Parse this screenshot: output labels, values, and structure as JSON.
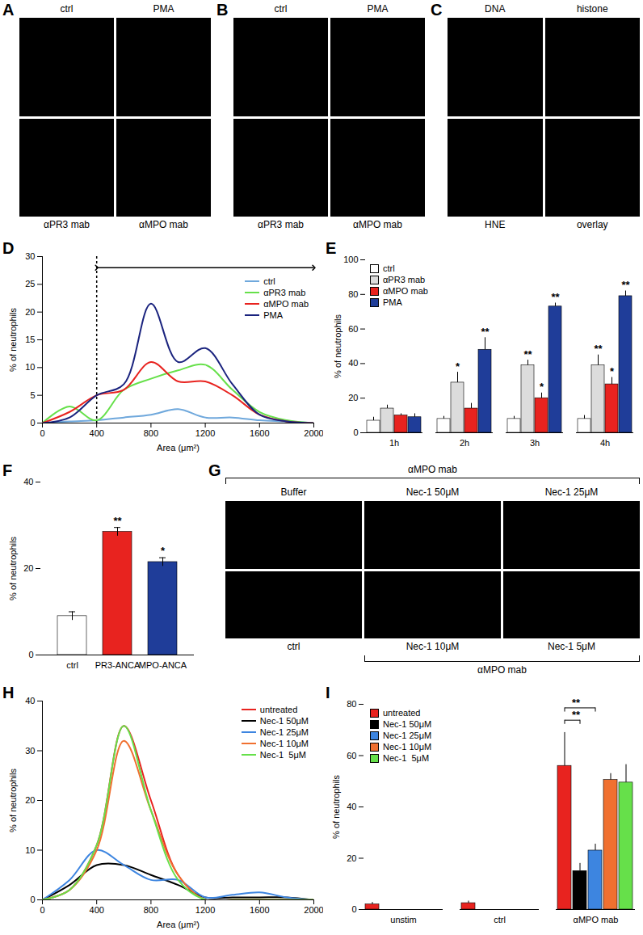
{
  "chart_data": [
    {
      "panel": "A",
      "type": "image",
      "top_labels": [
        "ctrl",
        "PMA"
      ],
      "bottom_labels": [
        "αPR3 mab",
        "αMPO mab"
      ]
    },
    {
      "panel": "B",
      "type": "image",
      "top_labels": [
        "ctrl",
        "PMA"
      ],
      "bottom_labels": [
        "αPR3 mab",
        "αMPO mab"
      ]
    },
    {
      "panel": "C",
      "type": "image",
      "top_labels": [
        "DNA",
        "histone"
      ],
      "bottom_labels": [
        "HNE",
        "overlay"
      ]
    },
    {
      "panel": "D",
      "type": "line",
      "x_label": "Area (μm²)",
      "y_label": "% of neutrophils",
      "x": [
        0,
        200,
        400,
        600,
        800,
        1000,
        1200,
        1400,
        1600,
        1800,
        2000
      ],
      "xlim": [
        0,
        2000
      ],
      "xticks": [
        0,
        400,
        800,
        1200,
        1600,
        2000
      ],
      "ylim": [
        0,
        30
      ],
      "yticks": [
        0,
        5,
        10,
        15,
        20,
        25,
        30
      ],
      "legend": "top-right",
      "threshold": 400,
      "arrow": [
        400,
        2000
      ],
      "arrow_y": 28,
      "series": [
        {
          "name": "ctrl",
          "color": "#6fa8dc",
          "values": [
            0,
            0.3,
            0.5,
            1,
            1.5,
            2.5,
            1,
            1,
            0.5,
            0.3,
            0
          ]
        },
        {
          "name": "αPR3 mab",
          "color": "#66e04a",
          "values": [
            0,
            3,
            0.5,
            6,
            8,
            9.5,
            10.5,
            6,
            2,
            0.5,
            0
          ]
        },
        {
          "name": "αMPO mab",
          "color": "#e8231f",
          "values": [
            0,
            2,
            5,
            6,
            11,
            7.5,
            7.5,
            5,
            1.5,
            0.3,
            0
          ]
        },
        {
          "name": "PMA",
          "color": "#1a237e",
          "values": [
            0,
            1,
            5,
            7,
            21.5,
            11,
            13.5,
            7,
            1.5,
            0.3,
            0
          ]
        }
      ]
    },
    {
      "panel": "E",
      "type": "bar",
      "categories": [
        "1h",
        "2h",
        "3h",
        "4h"
      ],
      "y_label": "% of neutrophils",
      "ylim": [
        0,
        100
      ],
      "yticks": [
        0,
        20,
        40,
        60,
        80,
        100
      ],
      "legend": "top-left",
      "series": [
        {
          "name": "ctrl",
          "color": "#ffffff",
          "values": [
            7,
            8,
            8,
            8
          ],
          "errors": [
            2,
            1.5,
            1.5,
            2
          ]
        },
        {
          "name": "αPR3 mab",
          "color": "#dcdcdc",
          "values": [
            14,
            29,
            39,
            39
          ],
          "errors": [
            2,
            6,
            3,
            6
          ],
          "significance": [
            null,
            "*",
            "**",
            "**"
          ]
        },
        {
          "name": "αMPO mab",
          "color": "#e8231f",
          "values": [
            10,
            14,
            20,
            28
          ],
          "errors": [
            1,
            3,
            3,
            4
          ],
          "significance": [
            null,
            null,
            "*",
            "*"
          ]
        },
        {
          "name": "PMA",
          "color": "#1f3d99",
          "values": [
            9,
            48,
            73,
            79
          ],
          "errors": [
            2,
            7,
            2,
            3
          ],
          "significance": [
            null,
            "**",
            "**",
            "**"
          ]
        }
      ]
    },
    {
      "panel": "F",
      "type": "bar",
      "categories": [
        "ctrl",
        "PR3-ANCA",
        "MPO-ANCA"
      ],
      "values": [
        9,
        28.5,
        21.5
      ],
      "errors": [
        1,
        1,
        1
      ],
      "colors": [
        "#ffffff",
        "#e8231f",
        "#1f3d99"
      ],
      "significance": [
        null,
        "**",
        "*"
      ],
      "y_label": "% of neutrophils",
      "ylim": [
        0,
        40
      ],
      "yticks": [
        0,
        20,
        40
      ]
    },
    {
      "panel": "G",
      "type": "image",
      "group_label_top": "αMPO mab",
      "top_labels": [
        "Buffer",
        "Nec-1 50μM",
        "Nec-1 25μM"
      ],
      "bottom_labels": [
        "ctrl",
        "Nec-1 10μM",
        "Nec-1 5μM"
      ],
      "group_label_bottom": "αMPO mab"
    },
    {
      "panel": "H",
      "type": "line",
      "x_label": "Area (μm²)",
      "y_label": "% of neutrophils",
      "x": [
        0,
        200,
        400,
        600,
        800,
        1000,
        1200,
        1400,
        1600,
        1800,
        2000
      ],
      "xlim": [
        0,
        2000
      ],
      "xticks": [
        0,
        400,
        800,
        1200,
        1600,
        2000
      ],
      "ylim": [
        0,
        40
      ],
      "yticks": [
        0,
        10,
        20,
        30,
        40
      ],
      "legend": "top-right",
      "series": [
        {
          "name": "untreated",
          "color": "#e8231f",
          "values": [
            0,
            2,
            11,
            35,
            20,
            5,
            0,
            0,
            0,
            0,
            0
          ]
        },
        {
          "name": "Nec-1 50μM",
          "color": "#000000",
          "values": [
            0,
            3,
            7,
            7,
            5,
            3,
            0.5,
            0.5,
            0.5,
            0.5,
            0
          ]
        },
        {
          "name": "Nec-1 25μM",
          "color": "#3d85e0",
          "values": [
            0,
            4,
            10,
            7,
            4,
            4,
            0.5,
            1,
            1.5,
            0.5,
            0
          ]
        },
        {
          "name": "Nec-1 10μM",
          "color": "#f07030",
          "values": [
            0,
            2,
            10,
            32,
            18,
            5,
            0,
            0,
            0,
            0,
            0
          ]
        },
        {
          "name": "Nec-1  5μM",
          "color": "#66e04a",
          "values": [
            0,
            2,
            11,
            35,
            18,
            4,
            0,
            0,
            0,
            0,
            0
          ]
        }
      ]
    },
    {
      "panel": "I",
      "type": "bar",
      "categories": [
        "unstim",
        "ctrl",
        "αMPO mab"
      ],
      "y_label": "% of neutrophils",
      "ylim": [
        0,
        80
      ],
      "yticks": [
        0,
        20,
        40,
        60,
        80
      ],
      "legend": "top-left",
      "series": [
        {
          "name": "untreated",
          "color": "#e8231f",
          "values": [
            2,
            2.5,
            56
          ],
          "errors": [
            0.8,
            0.8,
            13
          ]
        },
        {
          "name": "Nec-1 50μM",
          "color": "#000000",
          "values": [
            null,
            null,
            15
          ],
          "errors": [
            null,
            null,
            3
          ]
        },
        {
          "name": "Nec-1 25μM",
          "color": "#3d85e0",
          "values": [
            null,
            null,
            23
          ],
          "errors": [
            null,
            null,
            2.5
          ]
        },
        {
          "name": "Nec-1 10μM",
          "color": "#f07030",
          "values": [
            null,
            null,
            50.5
          ],
          "errors": [
            null,
            null,
            2.5
          ]
        },
        {
          "name": "Nec-1  5μM",
          "color": "#66e04a",
          "values": [
            null,
            null,
            49.5
          ],
          "errors": [
            null,
            null,
            7
          ]
        }
      ],
      "comparisons": [
        {
          "category": "αMPO mab",
          "series": [
            "untreated",
            "Nec-1 50μM"
          ],
          "label": "**"
        },
        {
          "category": "αMPO mab",
          "series": [
            "untreated",
            "Nec-1 25μM"
          ],
          "label": "**"
        }
      ]
    }
  ]
}
